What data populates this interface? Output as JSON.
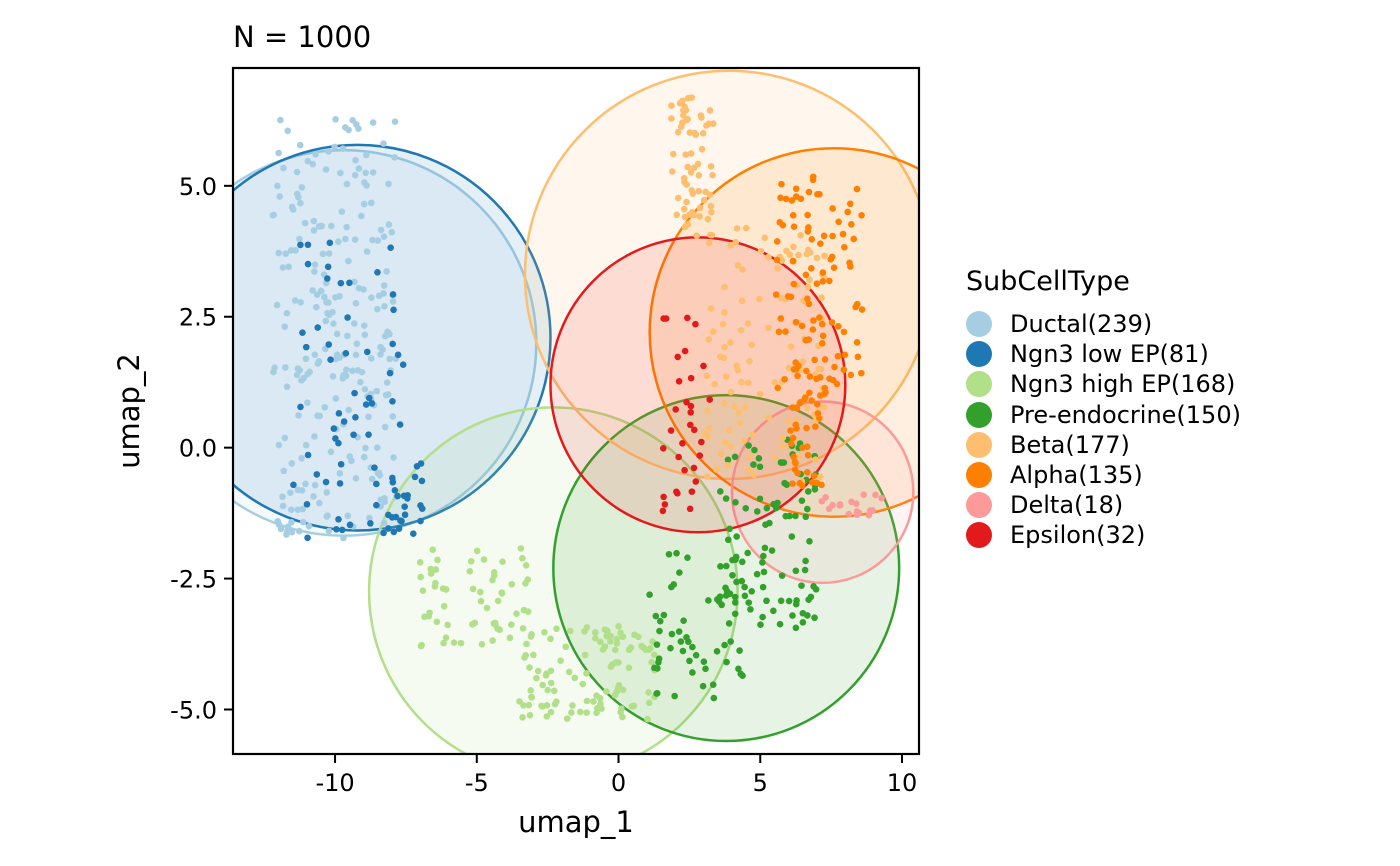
{
  "chart_data": {
    "type": "scatter",
    "title": "N = 1000",
    "xlabel": "umap_1",
    "ylabel": "umap_2",
    "xlim": [
      -13.6,
      10.6
    ],
    "ylim": [
      -5.85,
      7.25
    ],
    "x_ticks": [
      -10,
      -5,
      0,
      5,
      10
    ],
    "x_tick_labels": [
      "-10",
      "-5",
      "0",
      "5",
      "10"
    ],
    "y_ticks": [
      -5.0,
      -2.5,
      0.0,
      2.5,
      5.0
    ],
    "y_tick_labels": [
      "-5.0",
      "-2.5",
      "0.0",
      "2.5",
      "5.0"
    ],
    "grid": false,
    "legend": {
      "title": "SubCellType",
      "placement": "right"
    },
    "series": [
      {
        "name": "Ductal(239)",
        "color": "#A6CEE3",
        "count": 239,
        "region": {
          "cx": -9.7,
          "cy": 2.0,
          "r": 6.8
        },
        "spread": [
          {
            "x": [
              -12.2,
              -7.8
            ],
            "y": [
              -1.8,
              6.3
            ],
            "w": 1
          }
        ]
      },
      {
        "name": "Ngn3 low EP(81)",
        "color": "#1F78B4",
        "count": 81,
        "region": {
          "cx": -9.2,
          "cy": 2.1,
          "r": 6.8
        },
        "spread": [
          {
            "x": [
              -11.5,
              -7.5
            ],
            "y": [
              -1.8,
              4.0
            ],
            "w": 0.75
          },
          {
            "x": [
              -8.0,
              -6.9
            ],
            "y": [
              -1.8,
              -0.3
            ],
            "w": 0.25
          }
        ]
      },
      {
        "name": "Ngn3 high EP(168)",
        "color": "#B2DF8A",
        "count": 168,
        "region": {
          "cx": -2.3,
          "cy": -2.75,
          "r": 6.5
        },
        "spread": [
          {
            "x": [
              -7.0,
              -3.0
            ],
            "y": [
              -3.8,
              -1.9
            ],
            "w": 0.4
          },
          {
            "x": [
              -3.5,
              1.5
            ],
            "y": [
              -5.2,
              -3.4
            ],
            "w": 0.6
          }
        ]
      },
      {
        "name": "Pre-endocrine(150)",
        "color": "#33A02C",
        "count": 150,
        "region": {
          "cx": 3.8,
          "cy": -2.3,
          "r": 6.1
        },
        "spread": [
          {
            "x": [
              1.0,
              4.5
            ],
            "y": [
              -4.8,
              -2.0
            ],
            "w": 0.4
          },
          {
            "x": [
              3.5,
              7.0
            ],
            "y": [
              -3.5,
              0.2
            ],
            "w": 0.6
          }
        ]
      },
      {
        "name": "Beta(177)",
        "color": "#FDBF6F",
        "count": 177,
        "region": {
          "cx": 3.9,
          "cy": 3.3,
          "r": 7.2
        },
        "spread": [
          {
            "x": [
              1.8,
              3.4
            ],
            "y": [
              4.0,
              6.7
            ],
            "w": 0.35
          },
          {
            "x": [
              3.0,
              7.3
            ],
            "y": [
              -0.8,
              4.2
            ],
            "w": 0.65
          }
        ]
      },
      {
        "name": "Alpha(135)",
        "color": "#FF7F00",
        "count": 135,
        "region": {
          "cx": 7.6,
          "cy": 2.2,
          "r": 6.5
        },
        "spread": [
          {
            "x": [
              5.5,
              8.6
            ],
            "y": [
              1.0,
              5.3
            ],
            "w": 0.8
          },
          {
            "x": [
              6.0,
              7.2
            ],
            "y": [
              -0.8,
              1.0
            ],
            "w": 0.2
          }
        ]
      },
      {
        "name": "Delta(18)",
        "color": "#FB9A99",
        "count": 18,
        "region": {
          "cx": 7.2,
          "cy": -0.85,
          "r": 3.2
        },
        "spread": [
          {
            "x": [
              7.0,
              9.3
            ],
            "y": [
              -1.3,
              -0.8
            ],
            "w": 1
          }
        ]
      },
      {
        "name": "Epsilon(32)",
        "color": "#E31A1C",
        "count": 32,
        "region": {
          "cx": 2.8,
          "cy": 1.2,
          "r": 5.2
        },
        "spread": [
          {
            "x": [
              1.5,
              3.3
            ],
            "y": [
              -1.3,
              2.5
            ],
            "w": 1
          }
        ]
      }
    ]
  }
}
